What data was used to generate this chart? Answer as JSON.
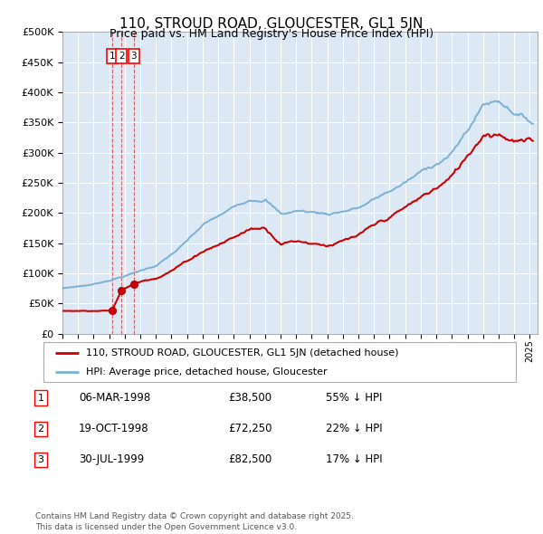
{
  "title": "110, STROUD ROAD, GLOUCESTER, GL1 5JN",
  "subtitle": "Price paid vs. HM Land Registry's House Price Index (HPI)",
  "ylim": [
    0,
    500000
  ],
  "yticks": [
    0,
    50000,
    100000,
    150000,
    200000,
    250000,
    300000,
    350000,
    400000,
    450000,
    500000
  ],
  "background_color": "#ffffff",
  "plot_bg_color": "#dce9f5",
  "grid_color": "#ffffff",
  "red_color": "#cc0000",
  "blue_color": "#7bafd4",
  "sale_points": [
    {
      "date_num": 1998.18,
      "price": 38500,
      "label": "1"
    },
    {
      "date_num": 1998.8,
      "price": 72250,
      "label": "2"
    },
    {
      "date_num": 1999.58,
      "price": 82500,
      "label": "3"
    }
  ],
  "legend_label_red": "110, STROUD ROAD, GLOUCESTER, GL1 5JN (detached house)",
  "legend_label_blue": "HPI: Average price, detached house, Gloucester",
  "table_rows": [
    {
      "num": "1",
      "date": "06-MAR-1998",
      "price": "£38,500",
      "hpi": "55% ↓ HPI"
    },
    {
      "num": "2",
      "date": "19-OCT-1998",
      "price": "£72,250",
      "hpi": "22% ↓ HPI"
    },
    {
      "num": "3",
      "date": "30-JUL-1999",
      "price": "£82,500",
      "hpi": "17% ↓ HPI"
    }
  ],
  "footer": "Contains HM Land Registry data © Crown copyright and database right 2025.\nThis data is licensed under the Open Government Licence v3.0.",
  "xmin": 1995.0,
  "xmax": 2025.5
}
